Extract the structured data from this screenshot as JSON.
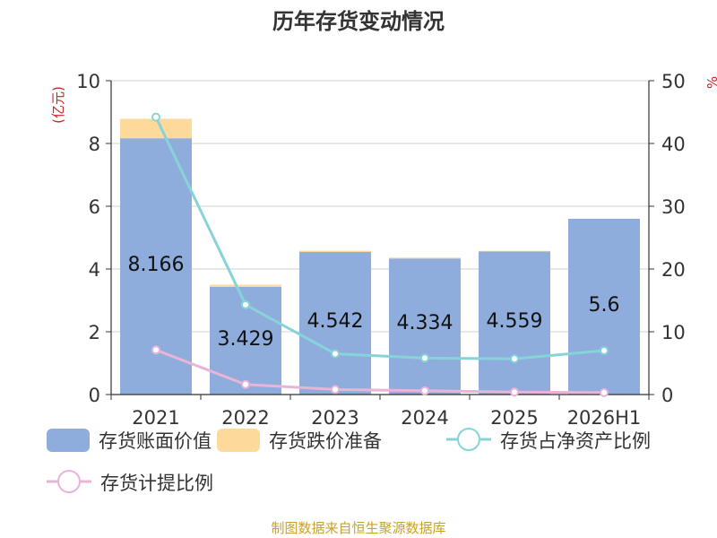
{
  "chart_data": {
    "type": "bar",
    "title": "历年存货变动情况",
    "source": "制图数据来自恒生聚源数据库",
    "y_left_unit": "(亿元)",
    "y_right_unit": "%",
    "categories": [
      "2021",
      "2022",
      "2023",
      "2024",
      "2025",
      "2026H1"
    ],
    "y_left_ticks": [
      "0",
      "2",
      "4",
      "6",
      "8",
      "10"
    ],
    "y_right_ticks": [
      "0",
      "10",
      "20",
      "30",
      "40",
      "50"
    ],
    "ylim_left": [
      0,
      10
    ],
    "ylim_right": [
      0,
      50
    ],
    "stacked": true,
    "series": [
      {
        "name": "存货账面价值",
        "type": "bar",
        "axis": "left",
        "color": "#8eaddc",
        "values": [
          8.166,
          3.429,
          4.542,
          4.334,
          4.559,
          5.6
        ],
        "labels": [
          "8.166",
          "3.429",
          "4.542",
          "4.334",
          "4.559",
          "5.6"
        ]
      },
      {
        "name": "存货跌价准备",
        "type": "bar",
        "axis": "left",
        "color": "#fdd99c",
        "values": [
          0.62,
          0.07,
          0.04,
          0.03,
          0.02,
          0.0
        ]
      },
      {
        "name": "存货占净资产比例",
        "type": "line",
        "axis": "right",
        "color": "#86d4d8",
        "values": [
          44.2,
          14.3,
          6.5,
          5.8,
          5.7,
          7.0
        ]
      },
      {
        "name": "存货计提比例",
        "type": "line",
        "axis": "right",
        "color": "#e8b4d8",
        "values": [
          7.1,
          1.6,
          0.8,
          0.6,
          0.4,
          0.3
        ]
      }
    ],
    "grid": true,
    "legend_position": "bottom"
  }
}
